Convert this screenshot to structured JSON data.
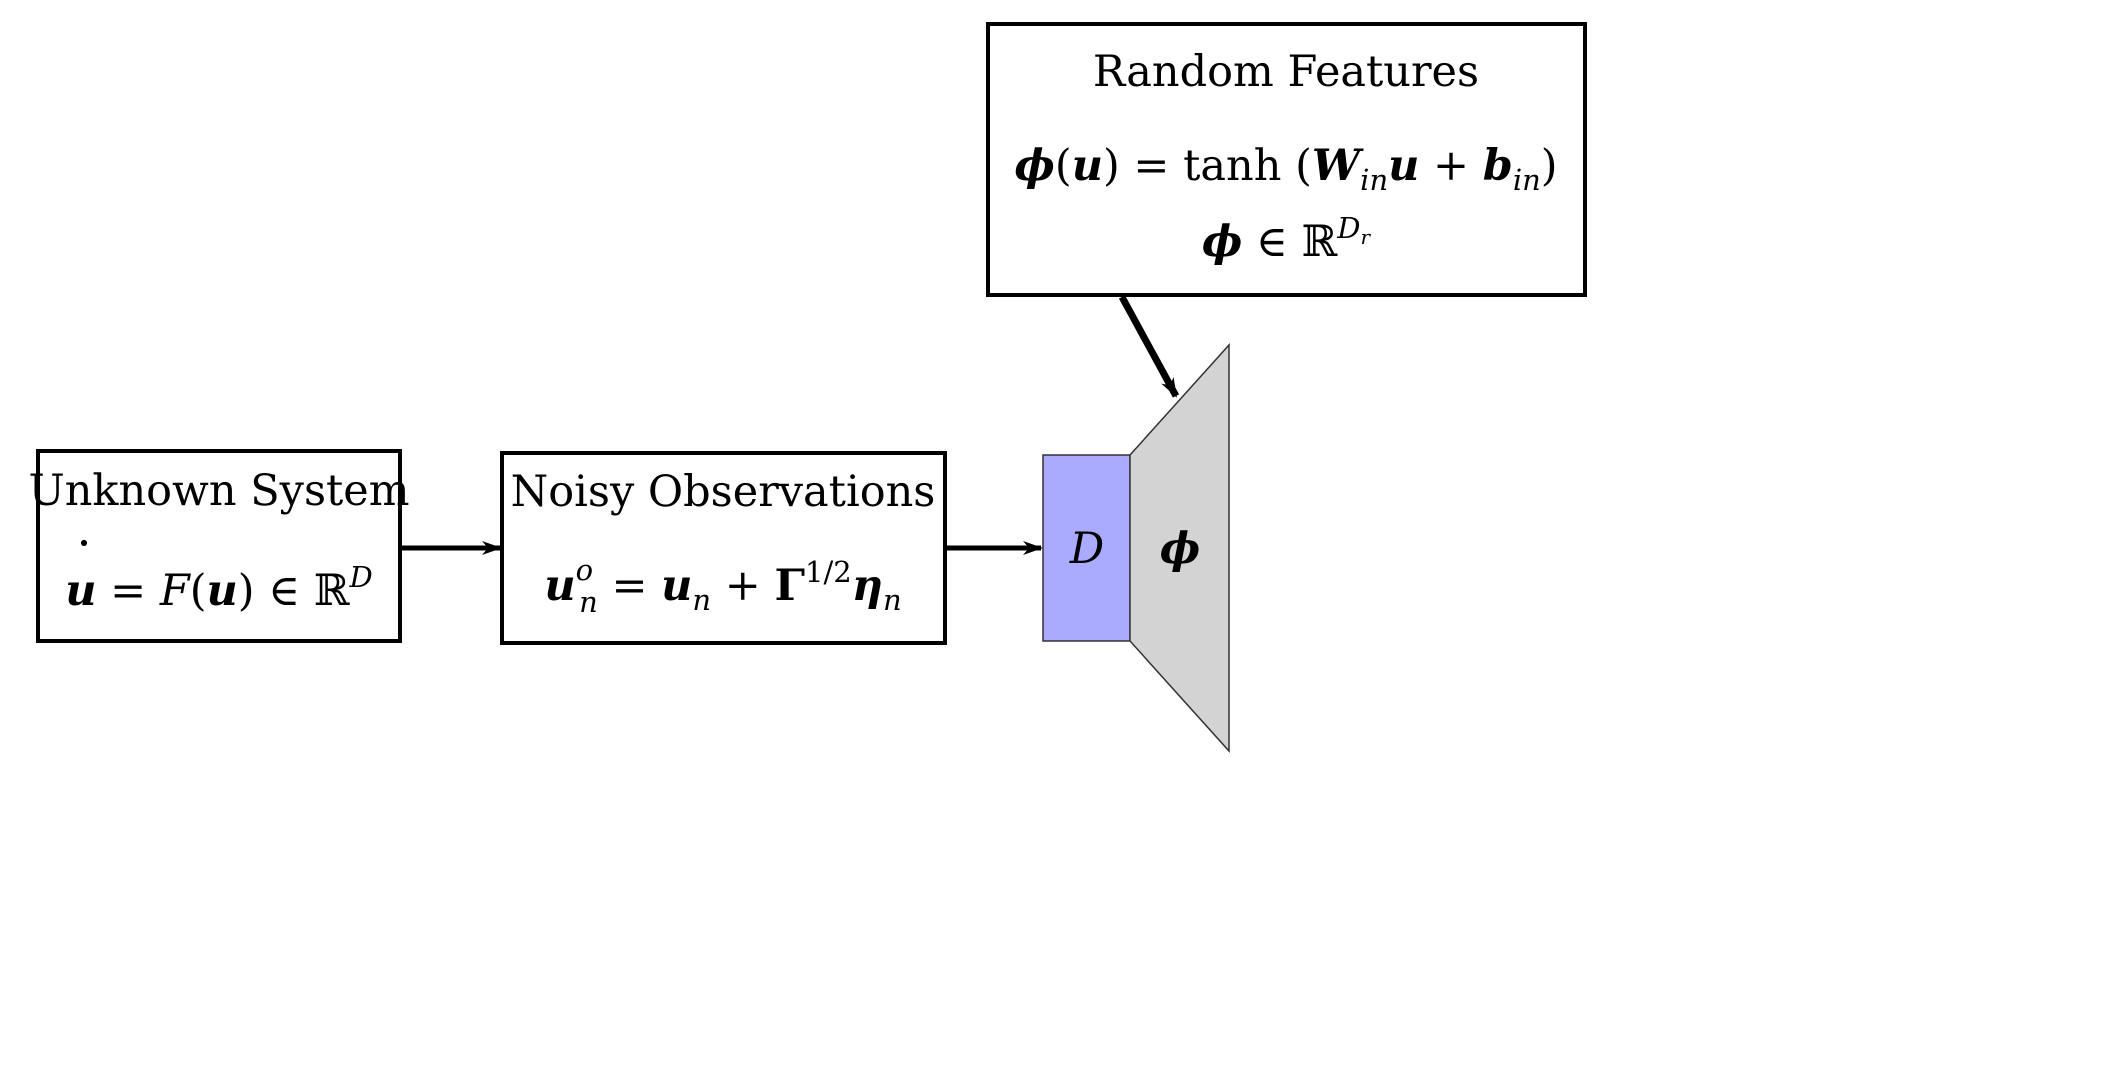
{
  "diagram": {
    "unknown_system": {
      "title": "Unknown System",
      "eq_u": "u",
      "eq_dot": "˙",
      "eq_eq": " = ",
      "eq_F": "F",
      "eq_paren_open": "(",
      "eq_u2": "u",
      "eq_paren_close": ")",
      "eq_in": " ∈ ",
      "eq_R": "ℝ",
      "eq_sup": "D"
    },
    "noisy_observations": {
      "title": "Noisy Observations",
      "eq_u": "u",
      "eq_sup_o": "o",
      "eq_sub_n": "n",
      "eq_eq": " = ",
      "eq_u2": "u",
      "eq_sub_n2": "n",
      "eq_plus": " + ",
      "eq_gamma": "Γ",
      "eq_sup_half": "1/2",
      "eq_eta": "η",
      "eq_sub_n3": "n"
    },
    "random_features": {
      "title": "Random Features",
      "eq1_phi": "ϕ",
      "eq1_open": "(",
      "eq1_u": "u",
      "eq1_close": ") = ",
      "eq1_tanh": "tanh",
      "eq1_lp": " (",
      "eq1_W": "W",
      "eq1_sub_in": "in",
      "eq1_u2": "u",
      "eq1_plus": " + ",
      "eq1_b": "b",
      "eq1_sub_in2": "in",
      "eq1_rp": ")",
      "eq2_phi": "ϕ",
      "eq2_in": " ∈ ",
      "eq2_R": "ℝ",
      "eq2_sup_D": "D",
      "eq2_sup_r": "r"
    },
    "input_layer": {
      "label": "D",
      "color": "#aaaaff"
    },
    "feature_layer": {
      "label": "ϕ",
      "color": "#d3d3d3"
    }
  }
}
